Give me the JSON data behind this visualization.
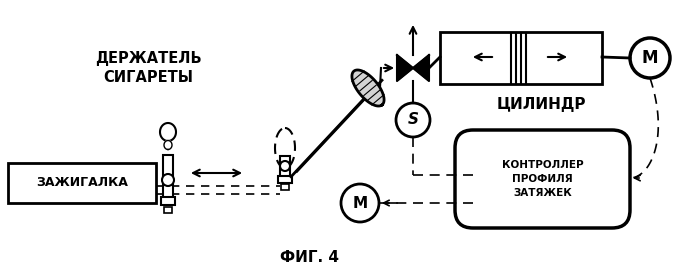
{
  "title": "ФИГ. 4",
  "label_держатель": "ДЕРЖАТЕЛЬ\nСИГАРЕТЫ",
  "label_цилиндр": "ЦИЛИНДР",
  "label_зажигалка": "ЗАЖИГАЛКА",
  "label_контроллер": "КОНТРОЛЛЕР\nПРОФИЛЯ\nЗАТЯЖЕК",
  "label_S": "S",
  "label_M1": "M",
  "label_M2": "M",
  "bg_color": "#ffffff",
  "line_color": "#000000",
  "figsize": [
    6.99,
    2.73
  ],
  "dpi": 100
}
